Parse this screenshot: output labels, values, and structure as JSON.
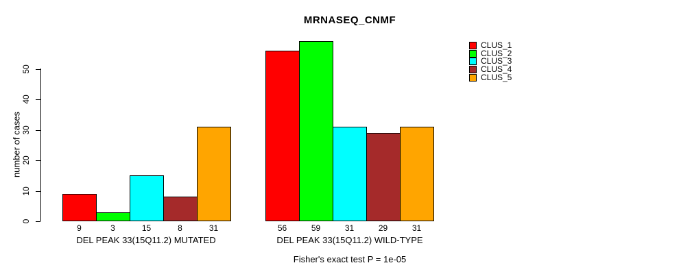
{
  "chart_data": {
    "type": "bar",
    "title": "MRNASEQ_CNMF",
    "ylabel": "number of cases",
    "yticks": [
      0,
      10,
      20,
      30,
      40,
      50
    ],
    "ylim": [
      0,
      59
    ],
    "grid": false,
    "legend_position": "top-right",
    "bar_value_labels": true,
    "groups": [
      {
        "label": "DEL PEAK 33(15Q11.2) MUTATED"
      },
      {
        "label": "DEL PEAK 33(15Q11.2) WILD-TYPE"
      }
    ],
    "series": [
      {
        "name": "CLUS_1",
        "color": "#FF0000",
        "values": [
          9,
          56
        ]
      },
      {
        "name": "CLUS_2",
        "color": "#00FF00",
        "values": [
          3,
          59
        ]
      },
      {
        "name": "CLUS_3",
        "color": "#00FFFF",
        "values": [
          15,
          31
        ]
      },
      {
        "name": "CLUS_4",
        "color": "#A52A2A",
        "values": [
          8,
          29
        ]
      },
      {
        "name": "CLUS_5",
        "color": "#FFA500",
        "values": [
          31,
          31
        ]
      }
    ],
    "annotation": "Fisher's exact test P = 1e-05"
  }
}
